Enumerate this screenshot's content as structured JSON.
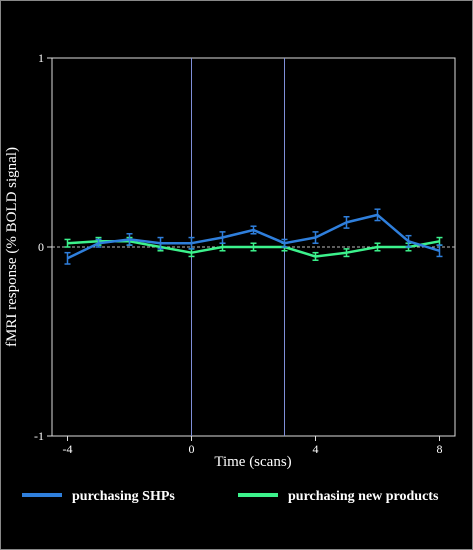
{
  "chart_data": {
    "type": "line",
    "title": "",
    "xlabel": "Time (scans)",
    "ylabel": "fMRI response (% BOLD signal)",
    "xlim": [
      -4.5,
      8.5
    ],
    "ylim": [
      -1,
      1
    ],
    "xticks": [
      -4,
      0,
      4,
      8
    ],
    "yticks": [
      -1,
      0,
      1
    ],
    "ytick_labels": [
      "-1",
      "0",
      "1"
    ],
    "vertical_lines": [
      0,
      3
    ],
    "zero_line": "dashed",
    "grid": false,
    "legend": "bottom",
    "x": [
      -4,
      -3,
      -2,
      -1,
      0,
      1,
      2,
      3,
      4,
      5,
      6,
      7,
      8
    ],
    "series": [
      {
        "name": "purchasing SHPs",
        "color": "#2f7fdc",
        "values": [
          -0.06,
          0.02,
          0.04,
          0.02,
          0.02,
          0.05,
          0.09,
          0.02,
          0.05,
          0.13,
          0.17,
          0.03,
          -0.02
        ],
        "errors": [
          0.03,
          0.02,
          0.03,
          0.03,
          0.03,
          0.03,
          0.02,
          0.02,
          0.03,
          0.03,
          0.03,
          0.03,
          0.03
        ]
      },
      {
        "name": "purchasing new products",
        "color": "#3cf28c",
        "values": [
          0.02,
          0.03,
          0.03,
          0.0,
          -0.03,
          0.0,
          0.0,
          0.0,
          -0.05,
          -0.03,
          0.0,
          0.0,
          0.03
        ],
        "errors": [
          0.02,
          0.02,
          0.02,
          0.02,
          0.02,
          0.02,
          0.02,
          0.02,
          0.02,
          0.02,
          0.02,
          0.02,
          0.02
        ]
      }
    ]
  }
}
